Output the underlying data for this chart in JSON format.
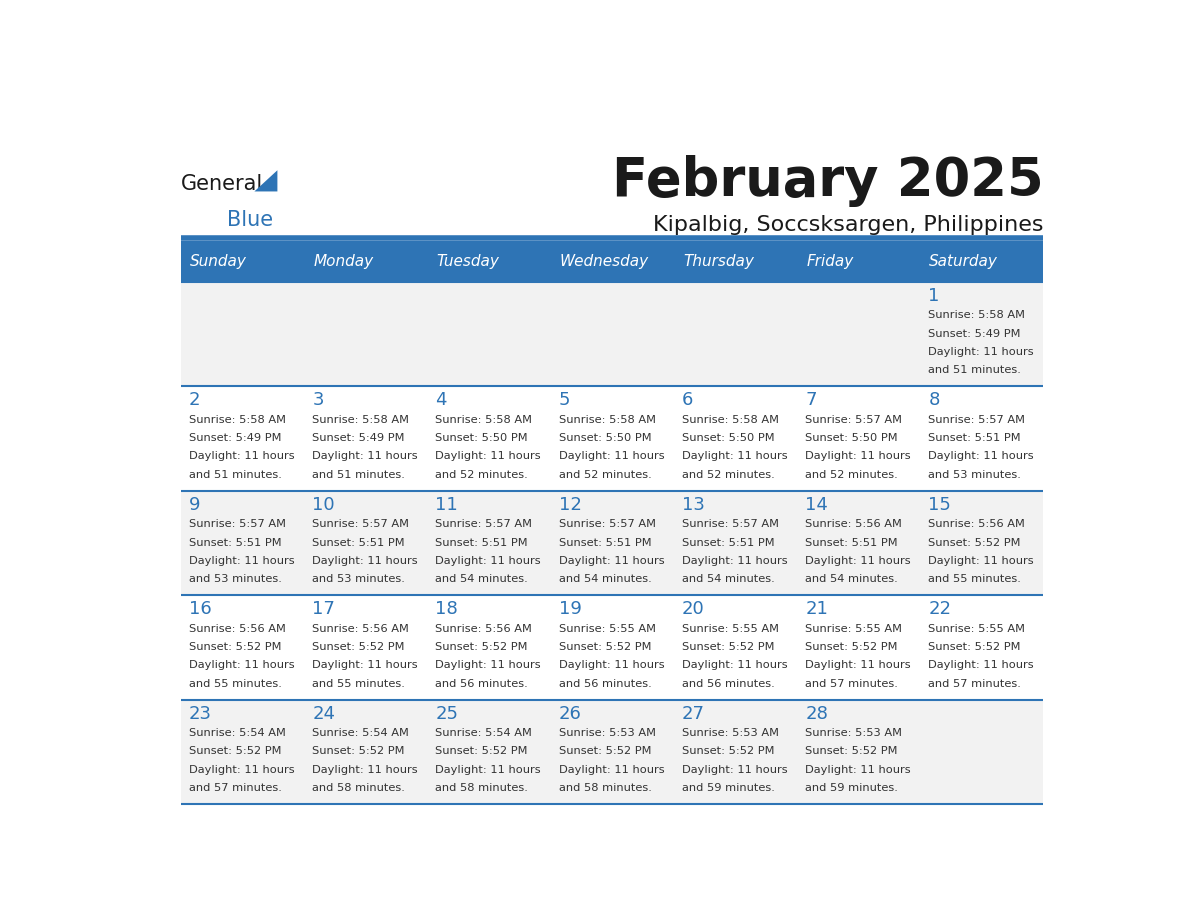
{
  "title": "February 2025",
  "subtitle": "Kipalbig, Soccsksargen, Philippines",
  "header_color": "#2E74B5",
  "header_text_color": "#FFFFFF",
  "day_names": [
    "Sunday",
    "Monday",
    "Tuesday",
    "Wednesday",
    "Thursday",
    "Friday",
    "Saturday"
  ],
  "background_color": "#FFFFFF",
  "cell_bg_even": "#F2F2F2",
  "cell_bg_odd": "#FFFFFF",
  "text_color": "#333333",
  "line_color": "#2E74B5",
  "calendar_data": [
    [
      null,
      null,
      null,
      null,
      null,
      null,
      {
        "day": 1,
        "sunrise": "5:58 AM",
        "sunset": "5:49 PM",
        "daylight": "11 hours and 51 minutes"
      }
    ],
    [
      {
        "day": 2,
        "sunrise": "5:58 AM",
        "sunset": "5:49 PM",
        "daylight": "11 hours and 51 minutes"
      },
      {
        "day": 3,
        "sunrise": "5:58 AM",
        "sunset": "5:49 PM",
        "daylight": "11 hours and 51 minutes"
      },
      {
        "day": 4,
        "sunrise": "5:58 AM",
        "sunset": "5:50 PM",
        "daylight": "11 hours and 52 minutes"
      },
      {
        "day": 5,
        "sunrise": "5:58 AM",
        "sunset": "5:50 PM",
        "daylight": "11 hours and 52 minutes"
      },
      {
        "day": 6,
        "sunrise": "5:58 AM",
        "sunset": "5:50 PM",
        "daylight": "11 hours and 52 minutes"
      },
      {
        "day": 7,
        "sunrise": "5:57 AM",
        "sunset": "5:50 PM",
        "daylight": "11 hours and 52 minutes"
      },
      {
        "day": 8,
        "sunrise": "5:57 AM",
        "sunset": "5:51 PM",
        "daylight": "11 hours and 53 minutes"
      }
    ],
    [
      {
        "day": 9,
        "sunrise": "5:57 AM",
        "sunset": "5:51 PM",
        "daylight": "11 hours and 53 minutes"
      },
      {
        "day": 10,
        "sunrise": "5:57 AM",
        "sunset": "5:51 PM",
        "daylight": "11 hours and 53 minutes"
      },
      {
        "day": 11,
        "sunrise": "5:57 AM",
        "sunset": "5:51 PM",
        "daylight": "11 hours and 54 minutes"
      },
      {
        "day": 12,
        "sunrise": "5:57 AM",
        "sunset": "5:51 PM",
        "daylight": "11 hours and 54 minutes"
      },
      {
        "day": 13,
        "sunrise": "5:57 AM",
        "sunset": "5:51 PM",
        "daylight": "11 hours and 54 minutes"
      },
      {
        "day": 14,
        "sunrise": "5:56 AM",
        "sunset": "5:51 PM",
        "daylight": "11 hours and 54 minutes"
      },
      {
        "day": 15,
        "sunrise": "5:56 AM",
        "sunset": "5:52 PM",
        "daylight": "11 hours and 55 minutes"
      }
    ],
    [
      {
        "day": 16,
        "sunrise": "5:56 AM",
        "sunset": "5:52 PM",
        "daylight": "11 hours and 55 minutes"
      },
      {
        "day": 17,
        "sunrise": "5:56 AM",
        "sunset": "5:52 PM",
        "daylight": "11 hours and 55 minutes"
      },
      {
        "day": 18,
        "sunrise": "5:56 AM",
        "sunset": "5:52 PM",
        "daylight": "11 hours and 56 minutes"
      },
      {
        "day": 19,
        "sunrise": "5:55 AM",
        "sunset": "5:52 PM",
        "daylight": "11 hours and 56 minutes"
      },
      {
        "day": 20,
        "sunrise": "5:55 AM",
        "sunset": "5:52 PM",
        "daylight": "11 hours and 56 minutes"
      },
      {
        "day": 21,
        "sunrise": "5:55 AM",
        "sunset": "5:52 PM",
        "daylight": "11 hours and 57 minutes"
      },
      {
        "day": 22,
        "sunrise": "5:55 AM",
        "sunset": "5:52 PM",
        "daylight": "11 hours and 57 minutes"
      }
    ],
    [
      {
        "day": 23,
        "sunrise": "5:54 AM",
        "sunset": "5:52 PM",
        "daylight": "11 hours and 57 minutes"
      },
      {
        "day": 24,
        "sunrise": "5:54 AM",
        "sunset": "5:52 PM",
        "daylight": "11 hours and 58 minutes"
      },
      {
        "day": 25,
        "sunrise": "5:54 AM",
        "sunset": "5:52 PM",
        "daylight": "11 hours and 58 minutes"
      },
      {
        "day": 26,
        "sunrise": "5:53 AM",
        "sunset": "5:52 PM",
        "daylight": "11 hours and 58 minutes"
      },
      {
        "day": 27,
        "sunrise": "5:53 AM",
        "sunset": "5:52 PM",
        "daylight": "11 hours and 59 minutes"
      },
      {
        "day": 28,
        "sunrise": "5:53 AM",
        "sunset": "5:52 PM",
        "daylight": "11 hours and 59 minutes"
      },
      null
    ]
  ]
}
